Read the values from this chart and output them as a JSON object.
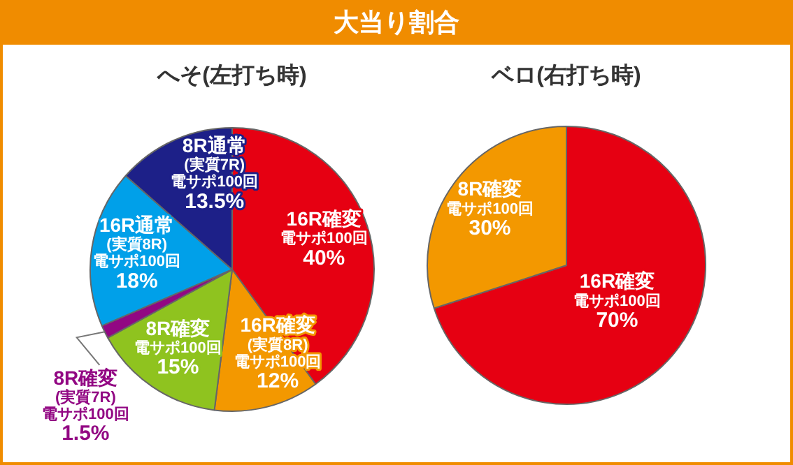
{
  "chart_data": [
    {
      "type": "other",
      "title": "大当り割合"
    },
    {
      "type": "pie",
      "title": "へそ(左打ち時)",
      "categories": [
        "16R確変電サポ100回",
        "16R確変(実質8R)電サポ100回",
        "8R確変電サポ100回",
        "8R確変(実質7R)電サポ100回",
        "16R通常(実質8R)電サポ100回",
        "8R通常(実質7R)電サポ100回"
      ],
      "values": [
        40,
        12,
        15,
        1.5,
        18,
        13.5
      ],
      "colors": [
        "#e60012",
        "#f39800",
        "#8fc31f",
        "#920783",
        "#00a0e9",
        "#1d2088"
      ],
      "value_labels": [
        "40%",
        "12%",
        "15%",
        "1.5%",
        "18%",
        "13.5%"
      ]
    },
    {
      "type": "pie",
      "title": "ベロ(右打ち時)",
      "categories": [
        "16R確変電サポ100回",
        "8R確変電サポ100回"
      ],
      "values": [
        70,
        30
      ],
      "colors": [
        "#e60012",
        "#f39800"
      ],
      "value_labels": [
        "70%",
        "30%"
      ]
    }
  ]
}
